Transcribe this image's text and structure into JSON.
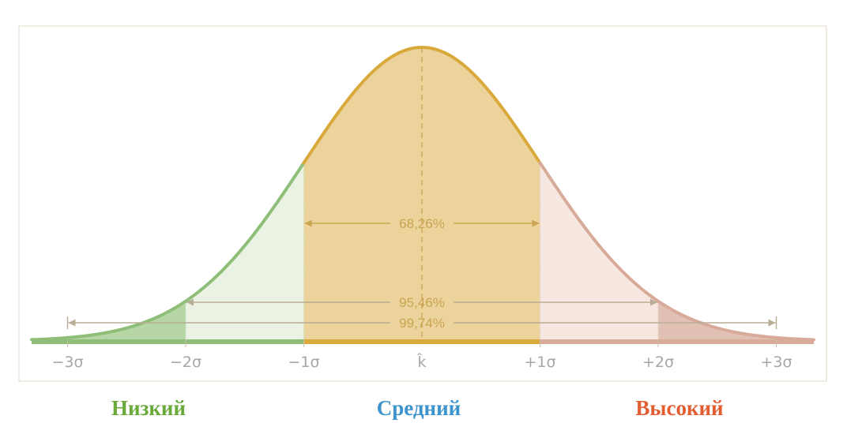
{
  "colors": {
    "frame": "#ebe6da",
    "curve_low": "#8fbe79",
    "fill_low_light": "#eaf3e3",
    "fill_low_dark": "#b7d6a6",
    "curve_mid": "#d9a93c",
    "fill_mid": "#ecd39c",
    "curve_high": "#d7aa9a",
    "fill_high_light": "#f6e7e1",
    "fill_high_dark": "#e2c1b5",
    "axis_low": "#8fbe79",
    "axis_mid": "#d9a93c",
    "axis_high": "#d7aa9a",
    "guide": "#e1be6f",
    "tick_text": "#a6a6a6",
    "pct_text": "#c9a451",
    "label_low": "#6aaa3a",
    "label_mid": "#3d93cc",
    "label_high": "#e25d32"
  },
  "axis_ticks": [
    {
      "sigma": -3,
      "label": "−3σ"
    },
    {
      "sigma": -2,
      "label": "−2σ"
    },
    {
      "sigma": -1,
      "label": "−1σ"
    },
    {
      "sigma": 0,
      "label": "k̂"
    },
    {
      "sigma": 1,
      "label": "+1σ"
    },
    {
      "sigma": 2,
      "label": "+2σ"
    },
    {
      "sigma": 3,
      "label": "+3σ"
    }
  ],
  "intervals": [
    {
      "from_sigma": -1,
      "to_sigma": 1,
      "label": "68,26%"
    },
    {
      "from_sigma": -2,
      "to_sigma": 2,
      "label": "95,46%"
    },
    {
      "from_sigma": -3,
      "to_sigma": 3,
      "label": "99,74%"
    }
  ],
  "levels": {
    "low": "Низкий",
    "mid": "Средний",
    "high": "Высокий"
  }
}
